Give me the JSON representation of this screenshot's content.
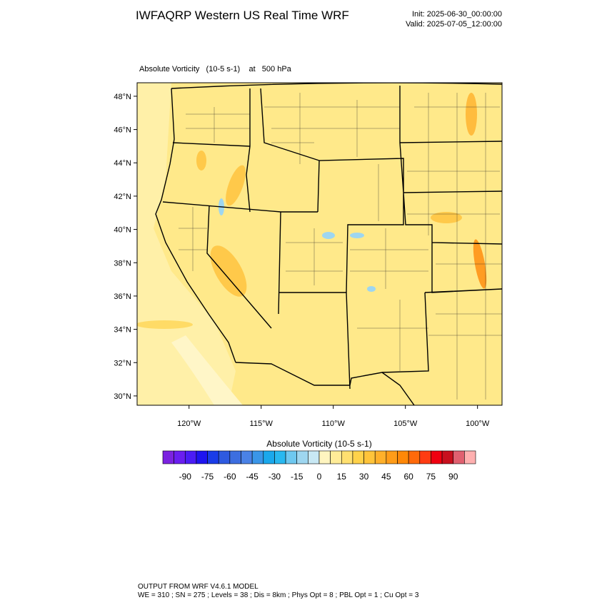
{
  "header": {
    "title": "IWFAQRP Western US Real Time WRF",
    "init": "Init: 2025-06-30_00:00:00",
    "valid": "Valid: 2025-07-05_12:00:00"
  },
  "map": {
    "subtitle": "Absolute Vorticity   (10-5 s-1)    at   500 hPa",
    "lat_range": [
      29.44,
      48.81
    ],
    "lon_range": [
      -123.6,
      -98.3
    ],
    "lat_ticks": [
      {
        "value": 48,
        "label": "48°N"
      },
      {
        "value": 46,
        "label": "46°N"
      },
      {
        "value": 44,
        "label": "44°N"
      },
      {
        "value": 42,
        "label": "42°N"
      },
      {
        "value": 40,
        "label": "40°N"
      },
      {
        "value": 38,
        "label": "38°N"
      },
      {
        "value": 36,
        "label": "36°N"
      },
      {
        "value": 34,
        "label": "34°N"
      },
      {
        "value": 32,
        "label": "32°N"
      },
      {
        "value": 30,
        "label": "30°N"
      }
    ],
    "lon_ticks": [
      {
        "value": -120,
        "label": "120°W"
      },
      {
        "value": -115,
        "label": "115°W"
      },
      {
        "value": -110,
        "label": "110°W"
      },
      {
        "value": -105,
        "label": "105°W"
      },
      {
        "value": -100,
        "label": "100°W"
      }
    ]
  },
  "colorbar": {
    "title": "Absolute Vorticity  (10-5 s-1)",
    "range": [
      -105,
      105
    ],
    "ticks": [
      -90,
      -75,
      -60,
      -45,
      -30,
      -15,
      0,
      15,
      30,
      45,
      60,
      75,
      90
    ],
    "colors": [
      "#7b22e0",
      "#6a1ef0",
      "#4b1cf5",
      "#1e14f0",
      "#1a3ce8",
      "#2e5ae0",
      "#3c6ee0",
      "#4a82e6",
      "#3a96e8",
      "#1aa8ec",
      "#28b8f0",
      "#6ec8f0",
      "#9ed6f0",
      "#c8e8f4",
      "#fff5c0",
      "#ffec98",
      "#ffe070",
      "#ffd24a",
      "#ffc43a",
      "#ffb02a",
      "#ff9c18",
      "#ff8808",
      "#ff6a0a",
      "#ff3c12",
      "#f00010",
      "#c8101e",
      "#e06070",
      "#ffb0b0"
    ]
  },
  "footer": {
    "line1": "OUTPUT FROM WRF V4.6.1 MODEL",
    "line2": "WE = 310 ; SN = 275 ; Levels = 38 ; Dis = 8km ; Phys Opt = 8 ; PBL Opt = 1 ; Cu Opt = 3"
  }
}
